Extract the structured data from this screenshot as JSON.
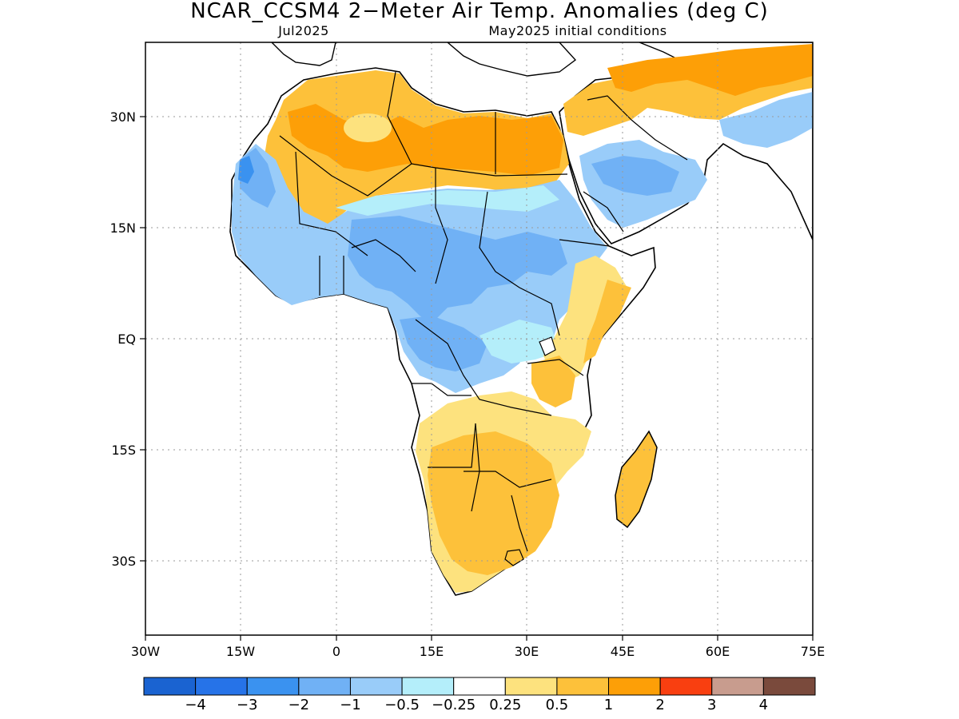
{
  "title": "NCAR_CCSM4 2−Meter Air Temp. Anomalies (deg C)",
  "subtitle_left": "Jul2025",
  "subtitle_right": "May2025 initial conditions",
  "map": {
    "lon_range": [
      -30,
      75
    ],
    "lat_range": [
      -40,
      40
    ],
    "x_ticks": [
      "30W",
      "15W",
      "0",
      "15E",
      "30E",
      "45E",
      "60E",
      "75E"
    ],
    "y_ticks": [
      "30N",
      "15N",
      "EQ",
      "15S",
      "30S"
    ],
    "grid": "dotted",
    "region": "Africa and Middle East"
  },
  "colorbar": {
    "colors": [
      "#1a63d1",
      "#2673e8",
      "#3a92f0",
      "#70b1f5",
      "#99ccf9",
      "#b4eefa",
      "#ffffff",
      "#fde27e",
      "#fdc13a",
      "#fd9f07",
      "#f93f10",
      "#c89c8e",
      "#7a4a3c"
    ],
    "labels": [
      "−4",
      "−3",
      "−2",
      "−1",
      "−0.5",
      "−0.25",
      "0.25",
      "0.5",
      "1",
      "2",
      "3",
      "4"
    ]
  },
  "anomaly_regions": [
    {
      "name": "north-africa-warm",
      "level": "1 to 2"
    },
    {
      "name": "sahara-core",
      "level": "0.5 to 1"
    },
    {
      "name": "sahel-cool",
      "level": "-1 to -0.5"
    },
    {
      "name": "west-africa-cool",
      "level": "-2 to -1"
    },
    {
      "name": "congo-cool",
      "level": "-2 to -1"
    },
    {
      "name": "arabia-cool",
      "level": "-1 to -0.5"
    },
    {
      "name": "southern-africa-warm",
      "level": "0.5 to 1"
    },
    {
      "name": "madagascar-warm",
      "level": "0.5 to 1"
    },
    {
      "name": "iran-warm",
      "level": "1 to 2"
    }
  ]
}
